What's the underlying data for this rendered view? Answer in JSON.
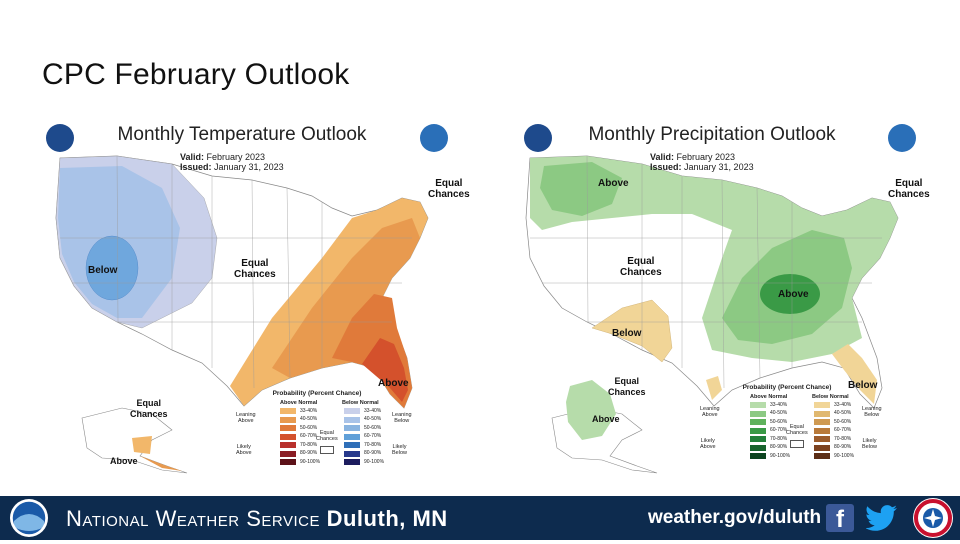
{
  "slide_title": "CPC February Outlook",
  "temperature": {
    "title": "Monthly Temperature Outlook",
    "valid_label": "Valid:",
    "valid_value": "February 2023",
    "issued_label": "Issued:",
    "issued_value": "January 31, 2023",
    "labels": {
      "below": "Below",
      "equal_chances_center": "Equal\nChances",
      "equal_chances_ne": "Equal\nChances",
      "above_se": "Above",
      "equal_chances_ak": "Equal\nChances",
      "above_ak": "Above"
    },
    "legend": {
      "title": "Probability (Percent Chance)",
      "above_header": "Above Normal",
      "below_header": "Below Normal",
      "leaning_above": "Leaning\nAbove",
      "likely_above": "Likely\nAbove",
      "leaning_below": "Leaning\nBelow",
      "likely_below": "Likely\nBelow",
      "equal_chances": "Equal\nChances",
      "ranges": [
        "33-40%",
        "40-50%",
        "50-60%",
        "60-70%",
        "70-80%",
        "80-90%",
        "90-100%"
      ],
      "above_colors": [
        "#f2b76a",
        "#e89a4f",
        "#e07a3a",
        "#d4512c",
        "#b8302c",
        "#8a1d24",
        "#5c1118"
      ],
      "below_colors": [
        "#c9d0ea",
        "#a9c3e8",
        "#8ab4e0",
        "#5f9fd8",
        "#2f6fb8",
        "#27398c",
        "#1c1c5e"
      ]
    }
  },
  "precipitation": {
    "title": "Monthly Precipitation Outlook",
    "valid_label": "Valid:",
    "valid_value": "February 2023",
    "issued_label": "Issued:",
    "issued_value": "January 31, 2023",
    "labels": {
      "above_nw": "Above",
      "equal_chances_ne": "Equal\nChances",
      "equal_chances_center": "Equal\nChances",
      "below_sw": "Below",
      "above_center": "Above",
      "below_fl": "Below",
      "equal_chances_ak": "Equal\nChances",
      "above_ak": "Above"
    },
    "legend": {
      "title": "Probability (Percent Chance)",
      "above_header": "Above Normal",
      "below_header": "Below Normal",
      "leaning_above": "Leaning\nAbove",
      "likely_above": "Likely\nAbove",
      "leaning_below": "Leaning\nBelow",
      "likely_below": "Likely\nBelow",
      "equal_chances": "Equal\nChances",
      "ranges": [
        "33-40%",
        "40-50%",
        "50-60%",
        "60-70%",
        "70-80%",
        "80-90%",
        "90-100%"
      ],
      "above_colors": [
        "#b6dcaa",
        "#8cc983",
        "#5fb25c",
        "#3a9a46",
        "#23803a",
        "#17632c",
        "#0d4420"
      ],
      "below_colors": [
        "#f1d597",
        "#e0b870",
        "#cf9a52",
        "#b97a3a",
        "#9c5c2c",
        "#7c4220",
        "#5c2e16"
      ]
    }
  },
  "footer": {
    "org_first_letter_1": "N",
    "org_rest_1": "ational",
    "org_first_letter_2": "W",
    "org_rest_2": "eather",
    "org_first_letter_3": "S",
    "org_rest_3": "ervice",
    "office": "Duluth, MN",
    "url": "weather.gov/duluth",
    "facebook_icon": "facebook-icon",
    "twitter_icon": "twitter-icon"
  },
  "colors": {
    "footer_bg": "#0d2b4e",
    "ec_white": "#ffffff"
  }
}
